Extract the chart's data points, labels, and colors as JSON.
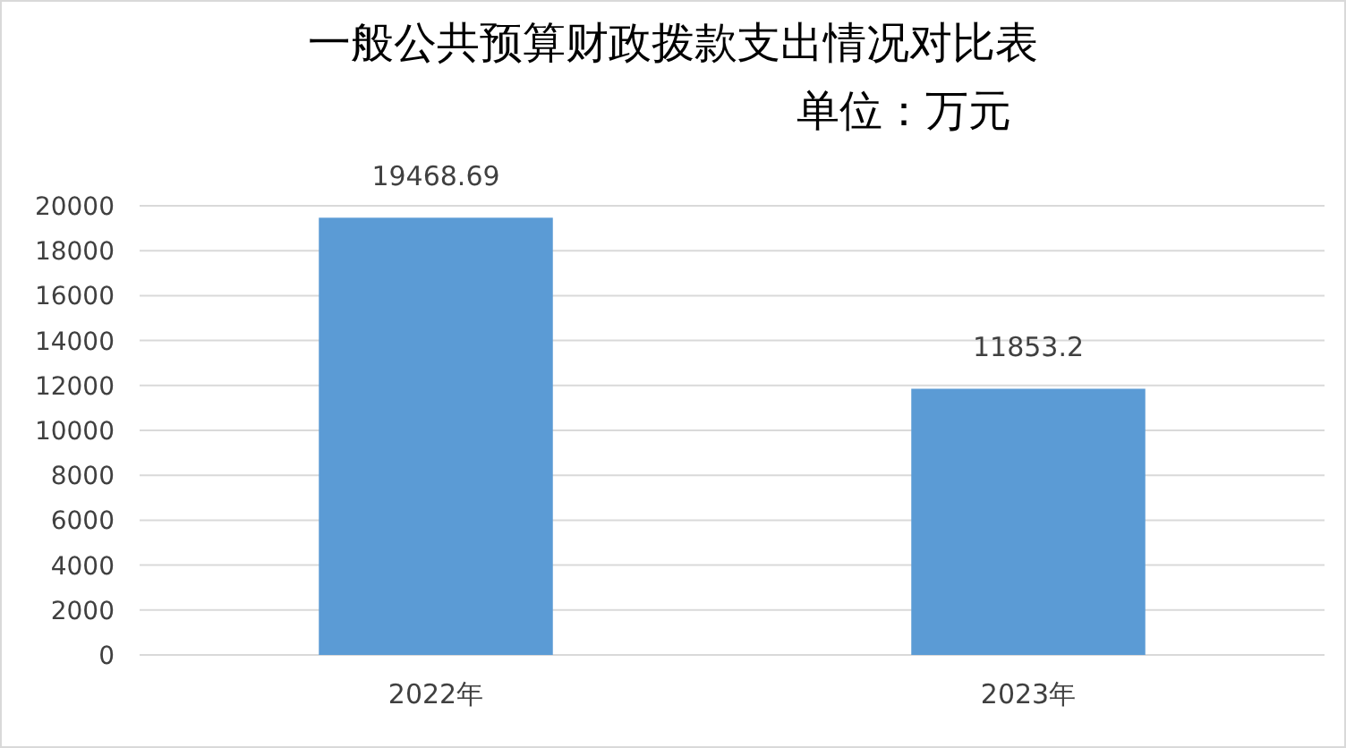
{
  "chart_data": {
    "type": "bar",
    "title": "一般公共预算财政拨款支出情况对比表",
    "subtitle": "单位：万元",
    "categories": [
      "2022年",
      "2023年"
    ],
    "values": [
      19468.69,
      11853.2
    ],
    "color": "#5b9bd5",
    "ylim": [
      0,
      20000
    ],
    "yticks": [
      0,
      2000,
      4000,
      6000,
      8000,
      10000,
      12000,
      14000,
      16000,
      18000,
      20000
    ],
    "grid": "y",
    "data_labels": true
  }
}
